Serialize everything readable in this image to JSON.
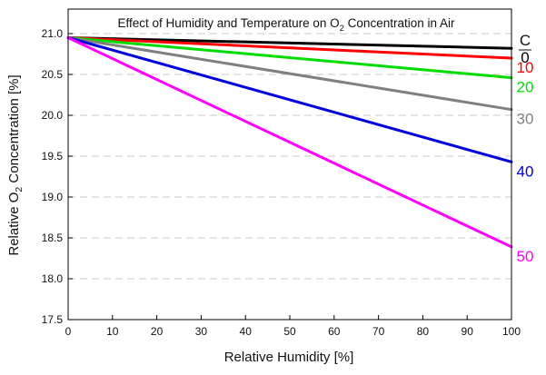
{
  "chart_data": {
    "type": "line",
    "title": {
      "before": "Effect of Humidity and Temperature on O",
      "sub": "2",
      "after": " Concentration in Air"
    },
    "xlabel": "Relative Humidity [%]",
    "ylabel": {
      "before": "Relative O",
      "sub": "2",
      "after": " Concentration [%]"
    },
    "xlim": [
      0,
      100
    ],
    "ylim": [
      17.5,
      21.3
    ],
    "xticks": [
      0,
      10,
      20,
      30,
      40,
      50,
      60,
      70,
      80,
      90,
      100
    ],
    "yticks": [
      17.5,
      18.0,
      18.5,
      19.0,
      19.5,
      20.0,
      20.5,
      21.0
    ],
    "ytick_labels": [
      "17.5",
      "18.0",
      "18.5",
      "19.0",
      "19.5",
      "20.0",
      "20.5",
      "21.0"
    ],
    "grid": "horizontal dashed",
    "legend_header": "C",
    "series": [
      {
        "name": "0",
        "color": "#000000",
        "x": [
          0,
          100
        ],
        "values": [
          20.95,
          20.82
        ]
      },
      {
        "name": "10",
        "color": "#ff0000",
        "x": [
          0,
          100
        ],
        "values": [
          20.95,
          20.7
        ]
      },
      {
        "name": "20",
        "color": "#00dd00",
        "x": [
          0,
          100
        ],
        "values": [
          20.95,
          20.46
        ]
      },
      {
        "name": "30",
        "color": "#808080",
        "x": [
          0,
          100
        ],
        "values": [
          20.95,
          20.07
        ]
      },
      {
        "name": "40",
        "color": "#0000dd",
        "x": [
          0,
          100
        ],
        "values": [
          20.95,
          19.43
        ]
      },
      {
        "name": "50",
        "color": "#ff00ff",
        "x": [
          0,
          100
        ],
        "values": [
          20.95,
          18.39
        ]
      }
    ]
  }
}
